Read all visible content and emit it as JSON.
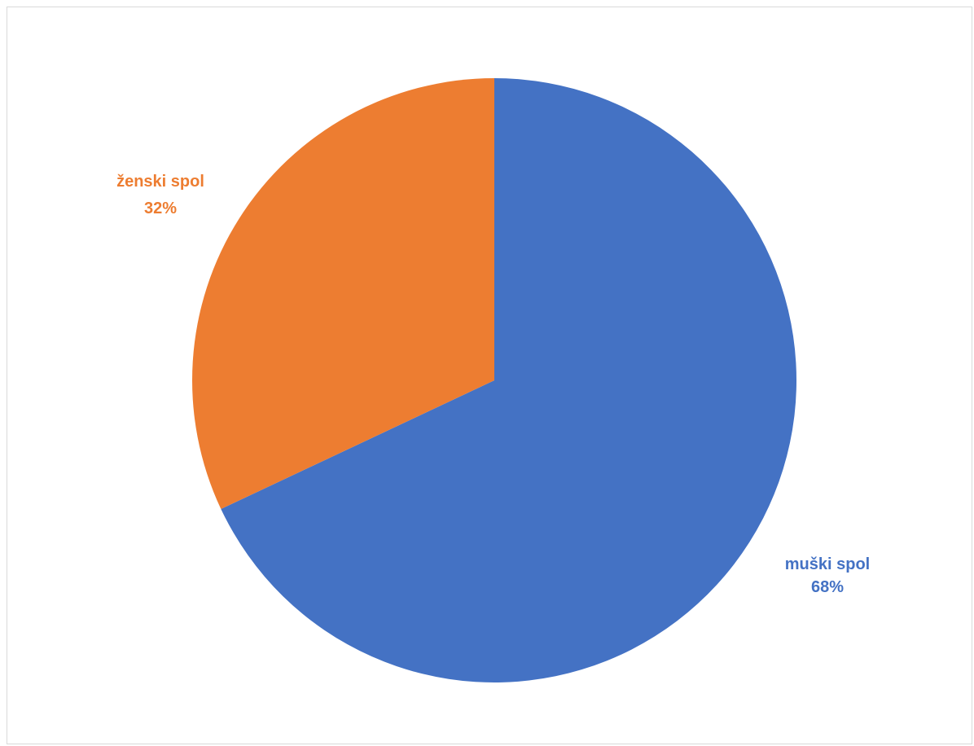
{
  "chart_data": {
    "type": "pie",
    "title": "",
    "start_angle_deg": 0,
    "direction": "clockwise",
    "slices": [
      {
        "name": "muški spol",
        "value": 68,
        "percent_label": "68%",
        "color": "#4472C4"
      },
      {
        "name": "ženski spol",
        "value": 32,
        "percent_label": "32%",
        "color": "#ED7D31"
      }
    ],
    "legend": "none",
    "data_labels": "outside, category name and percentage"
  }
}
